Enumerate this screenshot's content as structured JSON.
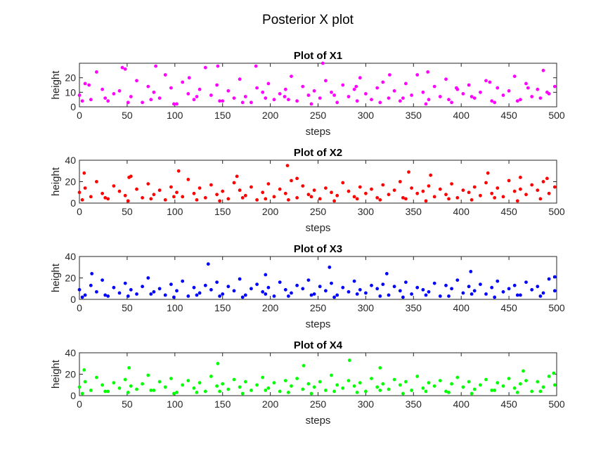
{
  "figure": {
    "title": "Posterior X plot"
  },
  "chart_data": [
    {
      "type": "scatter",
      "title": "Plot of X1",
      "xlabel": "steps",
      "ylabel": "height",
      "xlim": [
        0,
        500
      ],
      "ylim": [
        0,
        30
      ],
      "xticks": [
        0,
        50,
        100,
        150,
        200,
        250,
        300,
        350,
        400,
        450,
        500
      ],
      "yticks": [
        0,
        10,
        20
      ],
      "color": "#ff00ff",
      "grid": false,
      "series": [
        {
          "x": [
            0,
            6,
            12,
            18,
            24,
            30,
            36,
            42,
            48,
            54,
            60,
            66,
            72,
            78,
            84,
            90,
            96,
            102,
            108,
            114,
            120,
            126,
            132,
            138,
            144,
            150,
            156,
            162,
            168,
            174,
            180,
            186,
            192,
            198,
            204,
            210,
            216,
            222,
            228,
            234,
            240,
            246,
            252,
            258,
            264,
            270,
            276,
            282,
            288,
            294,
            300,
            306,
            312,
            318,
            324,
            330,
            336,
            342,
            348,
            354,
            360,
            366,
            372,
            378,
            384,
            390,
            396,
            402,
            408,
            414,
            420,
            426,
            432,
            438,
            444,
            450,
            456,
            462,
            468,
            474,
            480,
            486,
            492,
            498,
            3,
            27,
            51,
            75,
            99,
            123,
            147,
            171,
            195,
            219,
            243,
            267,
            291,
            315,
            339,
            363,
            387,
            411,
            435,
            459,
            483,
            10,
            45,
            80,
            115,
            145,
            185,
            215,
            255,
            290,
            325,
            365,
            395,
            430,
            470,
            490
          ],
          "y": [
            8,
            16,
            5,
            24,
            12,
            4,
            9,
            11,
            26,
            7,
            18,
            3,
            14,
            10,
            6,
            22,
            13,
            2,
            17,
            9,
            5,
            12,
            27,
            8,
            15,
            4,
            11,
            6,
            19,
            7,
            3,
            13,
            10,
            16,
            5,
            9,
            12,
            21,
            4,
            14,
            8,
            11,
            6,
            18,
            10,
            3,
            15,
            7,
            12,
            20,
            9,
            5,
            13,
            17,
            6,
            11,
            4,
            16,
            8,
            22,
            10,
            5,
            14,
            7,
            19,
            3,
            12,
            9,
            15,
            6,
            10,
            18,
            4,
            13,
            8,
            11,
            21,
            5,
            16,
            7,
            12,
            25,
            9,
            14,
            4,
            6,
            3,
            5,
            2,
            7,
            4,
            3,
            6,
            5,
            2,
            8,
            4,
            3,
            6,
            2,
            5,
            7,
            3,
            4,
            6,
            15,
            27,
            28,
            20,
            28,
            28,
            7,
            30,
            14,
            22,
            24,
            13,
            17,
            13,
            10
          ]
        }
      ]
    },
    {
      "type": "scatter",
      "title": "Plot of X2",
      "xlabel": "steps",
      "ylabel": "height",
      "xlim": [
        0,
        500
      ],
      "ylim": [
        0,
        40
      ],
      "xticks": [
        0,
        50,
        100,
        150,
        200,
        250,
        300,
        350,
        400,
        450,
        500
      ],
      "yticks": [
        0,
        20,
        40
      ],
      "color": "#ff0000",
      "grid": false,
      "series": [
        {
          "x": [
            0,
            6,
            12,
            18,
            24,
            30,
            36,
            42,
            48,
            54,
            60,
            66,
            72,
            78,
            84,
            90,
            96,
            102,
            108,
            114,
            120,
            126,
            132,
            138,
            144,
            150,
            156,
            162,
            168,
            174,
            180,
            186,
            192,
            198,
            204,
            210,
            216,
            222,
            228,
            234,
            240,
            246,
            252,
            258,
            264,
            270,
            276,
            282,
            288,
            294,
            300,
            306,
            312,
            318,
            324,
            330,
            336,
            342,
            348,
            354,
            360,
            366,
            372,
            378,
            384,
            390,
            396,
            402,
            408,
            414,
            420,
            426,
            432,
            438,
            444,
            450,
            456,
            462,
            468,
            474,
            480,
            486,
            492,
            498,
            3,
            27,
            51,
            75,
            99,
            123,
            147,
            171,
            195,
            219,
            243,
            267,
            291,
            315,
            339,
            363,
            387,
            411,
            435,
            459,
            483,
            5,
            52,
            104,
            165,
            218,
            228,
            345,
            368,
            428,
            462,
            490
          ],
          "y": [
            10,
            14,
            6,
            20,
            9,
            4,
            16,
            11,
            7,
            25,
            13,
            5,
            18,
            8,
            12,
            3,
            15,
            10,
            6,
            22,
            9,
            14,
            5,
            17,
            8,
            11,
            4,
            19,
            12,
            7,
            15,
            3,
            10,
            18,
            6,
            13,
            9,
            21,
            5,
            16,
            8,
            12,
            4,
            14,
            10,
            7,
            19,
            11,
            6,
            15,
            9,
            13,
            5,
            17,
            8,
            12,
            20,
            4,
            14,
            9,
            11,
            16,
            6,
            13,
            8,
            18,
            5,
            12,
            10,
            15,
            7,
            19,
            9,
            14,
            6,
            21,
            11,
            13,
            8,
            17,
            12,
            20,
            9,
            15,
            3,
            5,
            2,
            4,
            6,
            3,
            2,
            5,
            4,
            3,
            6,
            2,
            4,
            3,
            5,
            2,
            4,
            3,
            5,
            2,
            4,
            28,
            24,
            30,
            25,
            35,
            23,
            29,
            26,
            28,
            24,
            23
          ]
        }
      ]
    },
    {
      "type": "scatter",
      "title": "Plot of X3",
      "xlabel": "steps",
      "ylabel": "height",
      "xlim": [
        0,
        500
      ],
      "ylim": [
        0,
        40
      ],
      "xticks": [
        0,
        50,
        100,
        150,
        200,
        250,
        300,
        350,
        400,
        450,
        500
      ],
      "yticks": [
        0,
        20,
        40
      ],
      "color": "#0000ff",
      "grid": false,
      "series": [
        {
          "x": [
            0,
            6,
            12,
            18,
            24,
            30,
            36,
            42,
            48,
            54,
            60,
            66,
            72,
            78,
            84,
            90,
            96,
            102,
            108,
            114,
            120,
            126,
            132,
            138,
            144,
            150,
            156,
            162,
            168,
            174,
            180,
            186,
            192,
            198,
            204,
            210,
            216,
            222,
            228,
            234,
            240,
            246,
            252,
            258,
            264,
            270,
            276,
            282,
            288,
            294,
            300,
            306,
            312,
            318,
            324,
            330,
            336,
            342,
            348,
            354,
            360,
            366,
            372,
            378,
            384,
            390,
            396,
            402,
            408,
            414,
            420,
            426,
            432,
            438,
            444,
            450,
            456,
            462,
            468,
            474,
            480,
            486,
            492,
            498,
            3,
            27,
            51,
            75,
            99,
            123,
            147,
            171,
            195,
            219,
            243,
            267,
            291,
            315,
            339,
            363,
            387,
            411,
            435,
            459,
            483,
            13,
            135,
            195,
            262,
            322,
            410,
            498
          ],
          "y": [
            9,
            4,
            13,
            7,
            18,
            3,
            11,
            6,
            15,
            9,
            5,
            12,
            20,
            7,
            10,
            4,
            14,
            8,
            17,
            3,
            11,
            6,
            13,
            9,
            16,
            5,
            12,
            8,
            19,
            4,
            10,
            14,
            7,
            11,
            3,
            16,
            9,
            6,
            13,
            10,
            18,
            5,
            12,
            8,
            15,
            4,
            11,
            7,
            17,
            9,
            6,
            13,
            10,
            14,
            4,
            12,
            8,
            16,
            5,
            11,
            9,
            7,
            15,
            3,
            13,
            10,
            18,
            6,
            12,
            8,
            14,
            5,
            11,
            17,
            7,
            10,
            13,
            4,
            16,
            9,
            12,
            6,
            19,
            8,
            2,
            4,
            3,
            5,
            2,
            4,
            3,
            2,
            5,
            3,
            4,
            2,
            5,
            3,
            2,
            4,
            3,
            5,
            2,
            4,
            3,
            24,
            33,
            23,
            30,
            24,
            26,
            21
          ]
        }
      ]
    },
    {
      "type": "scatter",
      "title": "Plot of X4",
      "xlabel": "steps",
      "ylabel": "height",
      "xlim": [
        0,
        500
      ],
      "ylim": [
        0,
        40
      ],
      "xticks": [
        0,
        50,
        100,
        150,
        200,
        250,
        300,
        350,
        400,
        450,
        500
      ],
      "yticks": [
        0,
        20,
        40
      ],
      "color": "#00ff00",
      "grid": false,
      "series": [
        {
          "x": [
            0,
            6,
            12,
            18,
            24,
            30,
            36,
            42,
            48,
            54,
            60,
            66,
            72,
            78,
            84,
            90,
            96,
            102,
            108,
            114,
            120,
            126,
            132,
            138,
            144,
            150,
            156,
            162,
            168,
            174,
            180,
            186,
            192,
            198,
            204,
            210,
            216,
            222,
            228,
            234,
            240,
            246,
            252,
            258,
            264,
            270,
            276,
            282,
            288,
            294,
            300,
            306,
            312,
            318,
            324,
            330,
            336,
            342,
            348,
            354,
            360,
            366,
            372,
            378,
            384,
            390,
            396,
            402,
            408,
            414,
            420,
            426,
            432,
            438,
            444,
            450,
            456,
            462,
            468,
            474,
            480,
            486,
            492,
            498,
            3,
            27,
            51,
            75,
            99,
            123,
            147,
            171,
            195,
            219,
            243,
            267,
            291,
            315,
            339,
            363,
            387,
            411,
            435,
            459,
            483,
            5,
            52,
            145,
            235,
            283,
            315,
            465,
            497
          ],
          "y": [
            8,
            13,
            5,
            17,
            10,
            4,
            12,
            7,
            15,
            9,
            6,
            11,
            19,
            5,
            13,
            8,
            16,
            3,
            10,
            14,
            7,
            12,
            4,
            18,
            9,
            11,
            6,
            15,
            8,
            13,
            5,
            10,
            17,
            7,
            12,
            4,
            14,
            9,
            16,
            6,
            11,
            8,
            13,
            5,
            19,
            10,
            7,
            14,
            9,
            12,
            4,
            16,
            8,
            11,
            6,
            15,
            10,
            13,
            5,
            18,
            7,
            12,
            9,
            14,
            4,
            11,
            17,
            8,
            13,
            6,
            10,
            15,
            5,
            12,
            9,
            16,
            7,
            11,
            14,
            4,
            13,
            8,
            18,
            10,
            2,
            4,
            3,
            5,
            2,
            3,
            4,
            2,
            5,
            3,
            2,
            4,
            3,
            5,
            2,
            4,
            3,
            2,
            5,
            3,
            4,
            24,
            26,
            30,
            28,
            33,
            26,
            23,
            21
          ]
        }
      ]
    }
  ]
}
